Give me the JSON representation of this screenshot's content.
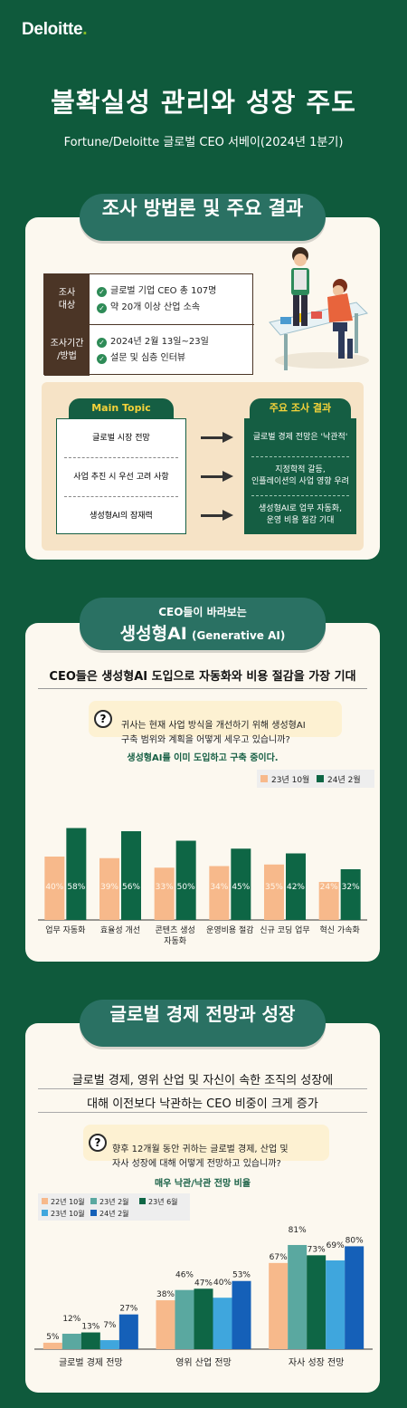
{
  "header": {
    "logo": "Deloitte",
    "logo_dot": ".",
    "title": "불확실성 관리와 성장 주도",
    "subtitle": "Fortune/Deloitte 글로벌 CEO 서베이(2024년 1분기)"
  },
  "methodology": {
    "pill": "조사 방법론 및 주요 결과",
    "rows": [
      {
        "label": "조사\n대상",
        "lines": [
          "글로벌 기업 CEO 총 107명",
          "약 20개 이상 산업 소속"
        ]
      },
      {
        "label": "조사기간\n/방법",
        "lines": [
          "2024년 2월 13일~23일",
          "설문 및 심층 인터뷰"
        ]
      }
    ],
    "left_header": "Main Topic",
    "right_header": "주요 조사 결과",
    "topics": [
      "글로벌 시장 전망",
      "사업 추진 시 우선 고려 사항",
      "생성형AI의 잠재력"
    ],
    "results": [
      "글로벌 경제 전망은 '낙관적'",
      "지정학적 갈등,\n인플레이션의 사업 영향 우려",
      "생성형AI로 업무 자동화,\n운영 비용 절감 기대"
    ]
  },
  "genai": {
    "pill_top": "CEO들이 바라보는",
    "pill_main": "생성형AI",
    "pill_en": "(Generative AI)",
    "headline": "CEO들은 생성형AI 도입으로 자동화와 비용 절감을 가장 기대",
    "question": "귀사는 현재 사업 방식을 개선하기 위해 생성형AI\n구축 범위와 계획을 어떻게 세우고 있습니까?",
    "chart_subtitle": "생성형AI를 이미 도입하고 구축 중이다."
  },
  "economy": {
    "pill": "글로벌 경제 전망과 성장",
    "headline_1": "글로벌 경제, 영위 산업 및 자신이 속한 조직의 성장에",
    "headline_2": "대해 이전보다 낙관하는 CEO 비중이 크게 증가",
    "question": "향후 12개월 동안 귀하는 글로벌 경제, 산업 및\n자사 성장에 대해 어떻게 전망하고 있습니까?",
    "chart_subtitle": "매우 낙관/낙관 전망 비율"
  },
  "chart_data": [
    {
      "type": "bar",
      "categories": [
        "업무 자동화",
        "효율성 개선",
        "콘텐츠 생성\n자동화",
        "운영비용 절감",
        "신규 코딩 업무",
        "혁신 가속화"
      ],
      "series": [
        {
          "name": "23년 10월",
          "values": [
            40,
            39,
            33,
            34,
            35,
            24
          ],
          "color": "#f7b98b"
        },
        {
          "name": "24년 2월",
          "values": [
            58,
            56,
            50,
            45,
            42,
            32
          ],
          "color": "#0e6645"
        }
      ],
      "value_suffix": "%",
      "legend": "top-right"
    },
    {
      "type": "bar",
      "categories": [
        "글로벌 경제 전망",
        "영위 산업 전망",
        "자사 성장 전망"
      ],
      "series": [
        {
          "name": "22년 10월",
          "values": [
            5,
            38,
            67
          ],
          "color": "#f7b98b"
        },
        {
          "name": "23년 2월",
          "values": [
            12,
            46,
            81
          ],
          "color": "#5aa8a0"
        },
        {
          "name": "23년 6월",
          "values": [
            13,
            47,
            73
          ],
          "color": "#0e6645"
        },
        {
          "name": "23년 10월",
          "values": [
            7,
            40,
            69
          ],
          "color": "#3fa6dd"
        },
        {
          "name": "24년 2월",
          "values": [
            27,
            53,
            80
          ],
          "color": "#1560b8"
        }
      ],
      "value_suffix": "%",
      "legend": "top-left"
    }
  ]
}
